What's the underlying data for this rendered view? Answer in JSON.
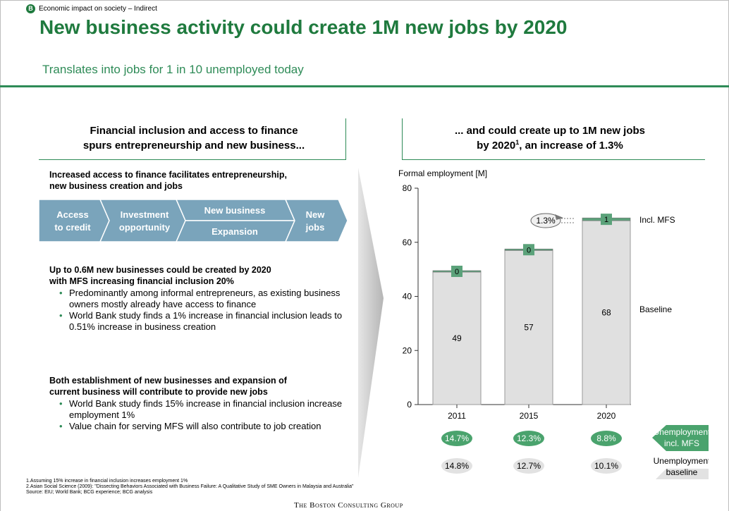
{
  "header": {
    "section_badge": "B",
    "section_label": "Economic impact on society – Indirect",
    "title": "New business activity could create 1M new jobs by 2020",
    "subtitle": "Translates into jobs for 1 in 10 unemployed today"
  },
  "left_panel": {
    "heading_line1": "Financial inclusion and access to finance",
    "heading_line2": "spurs entrepreneurship and new business...",
    "intro_line1": "Increased access to finance facilitates entrepreneurship,",
    "intro_line2": "new business creation and jobs",
    "flow": {
      "step1_line1": "Access",
      "step1_line2": "to credit",
      "step2_line1": "Investment",
      "step2_line2": "opportunity",
      "step3_top": "New business",
      "step3_bottom": "Expansion",
      "step4_line1": "New",
      "step4_line2": "jobs"
    },
    "block1_line1": "Up to 0.6M new businesses could be created by 2020",
    "block1_line2": "with MFS increasing financial inclusion 20%",
    "block1_bullets": [
      "Predominantly among informal entrepreneurs, as existing business owners mostly already have access to finance",
      "World Bank study finds a 1% increase in financial inclusion leads to 0.51% increase in business creation"
    ],
    "block2_line1": "Both establishment of new businesses and expansion of",
    "block2_line2": "current business will contribute to provide new jobs",
    "block2_bullets": [
      "World Bank study finds 15% increase in financial inclusion increase employment 1%",
      "Value chain for serving MFS will also contribute to job creation"
    ]
  },
  "right_panel": {
    "heading_line1": "... and could create up to 1M new jobs",
    "heading_line2_pre": "by 2020",
    "heading_sup": "1",
    "heading_line2_post": ", an increase of 1.3%"
  },
  "chart_data": {
    "type": "bar",
    "ylabel": "Formal employment [M]",
    "ylim": [
      0,
      80
    ],
    "yticks": [
      0,
      20,
      40,
      60,
      80
    ],
    "categories": [
      "2011",
      "2015",
      "2020"
    ],
    "series": [
      {
        "name": "Baseline",
        "values": [
          49,
          57,
          68
        ]
      },
      {
        "name": "Incl. MFS",
        "values": [
          0,
          0,
          1
        ]
      }
    ],
    "bar_labels_baseline": [
      "49",
      "57",
      "68"
    ],
    "bar_labels_mfs": [
      "0",
      "0",
      "1"
    ],
    "growth_callout": "1.3%",
    "unemployment_incl_mfs": [
      "14.7%",
      "12.3%",
      "8.8%"
    ],
    "unemployment_baseline": [
      "14.8%",
      "12.7%",
      "10.1%"
    ],
    "unemployment_incl_mfs_label_line1": "Unemployment",
    "unemployment_incl_mfs_label_line2": "incl. MFS",
    "unemployment_baseline_label_line1": "Unemployment",
    "unemployment_baseline_label_line2": "baseline",
    "colors": {
      "baseline": "#e0e0e0",
      "mfs": "#5ba27a",
      "unemp_mfs": "#4aa36d",
      "unemp_base": "#e2e2e2",
      "accent": "#1f7a3e"
    }
  },
  "footnotes": {
    "line1": "1.Assuming 15% increase in financial inclusion increases employment 1%",
    "line2": "2.Asian Social Science (2009): \"Dissecting Behaviors Associated with Business Failure: A Qualitative Study of SME Owners in Malaysia and Australia\"",
    "line3": "Source: EIU; World Bank; BCG experience; BCG analysis"
  },
  "logo": "The Boston Consulting Group"
}
